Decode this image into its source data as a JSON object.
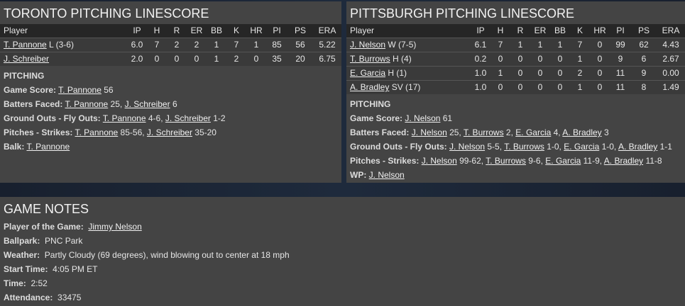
{
  "columns": [
    "Player",
    "IP",
    "H",
    "R",
    "ER",
    "BB",
    "K",
    "HR",
    "PI",
    "PS",
    "ERA"
  ],
  "toronto": {
    "title": "TORONTO PITCHING LINESCORE",
    "rows": [
      {
        "name": "T. Pannone",
        "note": " L (3-6)",
        "stats": [
          "6.0",
          "7",
          "2",
          "2",
          "1",
          "7",
          "1",
          "85",
          "56",
          "5.22"
        ]
      },
      {
        "name": "J. Schreiber",
        "note": "",
        "stats": [
          "2.0",
          "0",
          "0",
          "0",
          "1",
          "2",
          "0",
          "35",
          "20",
          "6.75"
        ]
      }
    ],
    "section_title": "PITCHING",
    "lines": [
      {
        "label": "Game Score:",
        "parts": [
          {
            "link": "T. Pannone",
            "text": " 56"
          }
        ]
      },
      {
        "label": "Batters Faced:",
        "parts": [
          {
            "link": "T. Pannone",
            "text": " 25, "
          },
          {
            "link": "J. Schreiber",
            "text": " 6"
          }
        ]
      },
      {
        "label": "Ground Outs - Fly Outs:",
        "parts": [
          {
            "link": "T. Pannone",
            "text": " 4-6, "
          },
          {
            "link": "J. Schreiber",
            "text": " 1-2"
          }
        ]
      },
      {
        "label": "Pitches - Strikes:",
        "parts": [
          {
            "link": "T. Pannone",
            "text": " 85-56, "
          },
          {
            "link": "J. Schreiber",
            "text": " 35-20"
          }
        ]
      },
      {
        "label": "Balk:",
        "parts": [
          {
            "link": "T. Pannone",
            "text": ""
          }
        ]
      }
    ]
  },
  "pittsburgh": {
    "title": "PITTSBURGH PITCHING LINESCORE",
    "rows": [
      {
        "name": "J. Nelson",
        "note": " W (7-5)",
        "stats": [
          "6.1",
          "7",
          "1",
          "1",
          "1",
          "7",
          "0",
          "99",
          "62",
          "4.43"
        ]
      },
      {
        "name": "T. Burrows",
        "note": " H (4)",
        "stats": [
          "0.2",
          "0",
          "0",
          "0",
          "0",
          "1",
          "0",
          "9",
          "6",
          "2.67"
        ]
      },
      {
        "name": "E. Garcia",
        "note": " H (1)",
        "stats": [
          "1.0",
          "1",
          "0",
          "0",
          "0",
          "2",
          "0",
          "11",
          "9",
          "0.00"
        ]
      },
      {
        "name": "A. Bradley",
        "note": " SV (17)",
        "stats": [
          "1.0",
          "0",
          "0",
          "0",
          "0",
          "1",
          "0",
          "11",
          "8",
          "1.49"
        ]
      }
    ],
    "section_title": "PITCHING",
    "lines": [
      {
        "label": "Game Score:",
        "parts": [
          {
            "link": "J. Nelson",
            "text": " 61"
          }
        ]
      },
      {
        "label": "Batters Faced:",
        "parts": [
          {
            "link": "J. Nelson",
            "text": " 25, "
          },
          {
            "link": "T. Burrows",
            "text": " 2, "
          },
          {
            "link": "E. Garcia",
            "text": " 4, "
          },
          {
            "link": "A. Bradley",
            "text": " 3"
          }
        ]
      },
      {
        "label": "Ground Outs - Fly Outs:",
        "parts": [
          {
            "link": "J. Nelson",
            "text": " 5-5, "
          },
          {
            "link": "T. Burrows",
            "text": " 1-0, "
          },
          {
            "link": "E. Garcia",
            "text": " 1-0, "
          },
          {
            "link": "A. Bradley",
            "text": " 1-1"
          }
        ]
      },
      {
        "label": "Pitches - Strikes:",
        "parts": [
          {
            "link": "J. Nelson",
            "text": " 99-62, "
          },
          {
            "link": "T. Burrows",
            "text": " 9-6, "
          },
          {
            "link": "E. Garcia",
            "text": " 11-9, "
          },
          {
            "link": "A. Bradley",
            "text": " 11-8"
          }
        ]
      },
      {
        "label": "WP:",
        "parts": [
          {
            "link": "J. Nelson",
            "text": ""
          }
        ]
      }
    ]
  },
  "notes": {
    "title": "GAME NOTES",
    "lines": [
      {
        "label": "Player of the Game:",
        "link": "Jimmy Nelson",
        "text": ""
      },
      {
        "label": "Ballpark:",
        "link": "",
        "text": "PNC Park"
      },
      {
        "label": "Weather:",
        "link": "",
        "text": "Partly Cloudy (69 degrees), wind blowing out to center at 18 mph"
      },
      {
        "label": "Start Time:",
        "link": "",
        "text": "4:05 PM ET"
      },
      {
        "label": "Time:",
        "link": "",
        "text": "2:52"
      },
      {
        "label": "Attendance:",
        "link": "",
        "text": "33475"
      }
    ]
  }
}
